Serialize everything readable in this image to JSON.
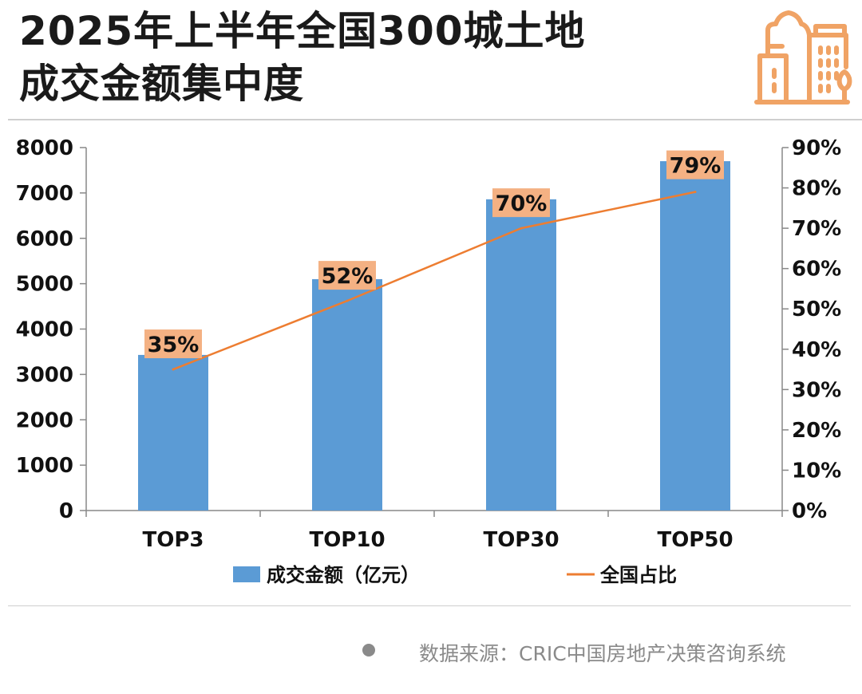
{
  "title_line1": "2025年上半年全国300城土地",
  "title_line2": "成交金额集中度",
  "source": "数据来源：CRIC中国房地产决策咨询系统",
  "colors": {
    "bar": "#5b9bd5",
    "line": "#ed7d31",
    "label_bg": "#f4b183",
    "icon": "#f0a365"
  },
  "chart_data": {
    "type": "bar",
    "categories": [
      "TOP3",
      "TOP10",
      "TOP30",
      "TOP50"
    ],
    "series": [
      {
        "name": "成交金额（亿元）",
        "type": "bar",
        "axis": "left",
        "values": [
          3430,
          5100,
          6860,
          7700
        ]
      },
      {
        "name": "全国占比",
        "type": "line",
        "axis": "right",
        "values": [
          35,
          52,
          70,
          79
        ],
        "labels": [
          "35%",
          "52%",
          "70%",
          "79%"
        ]
      }
    ],
    "ylim": [
      0,
      8000
    ],
    "yticks": [
      "0",
      "1000",
      "2000",
      "3000",
      "4000",
      "5000",
      "6000",
      "7000",
      "8000"
    ],
    "y2lim": [
      0,
      90
    ],
    "y2ticks": [
      "0%",
      "10%",
      "20%",
      "30%",
      "40%",
      "50%",
      "60%",
      "70%",
      "80%",
      "90%"
    ],
    "legend": "bottom",
    "grid": false
  }
}
